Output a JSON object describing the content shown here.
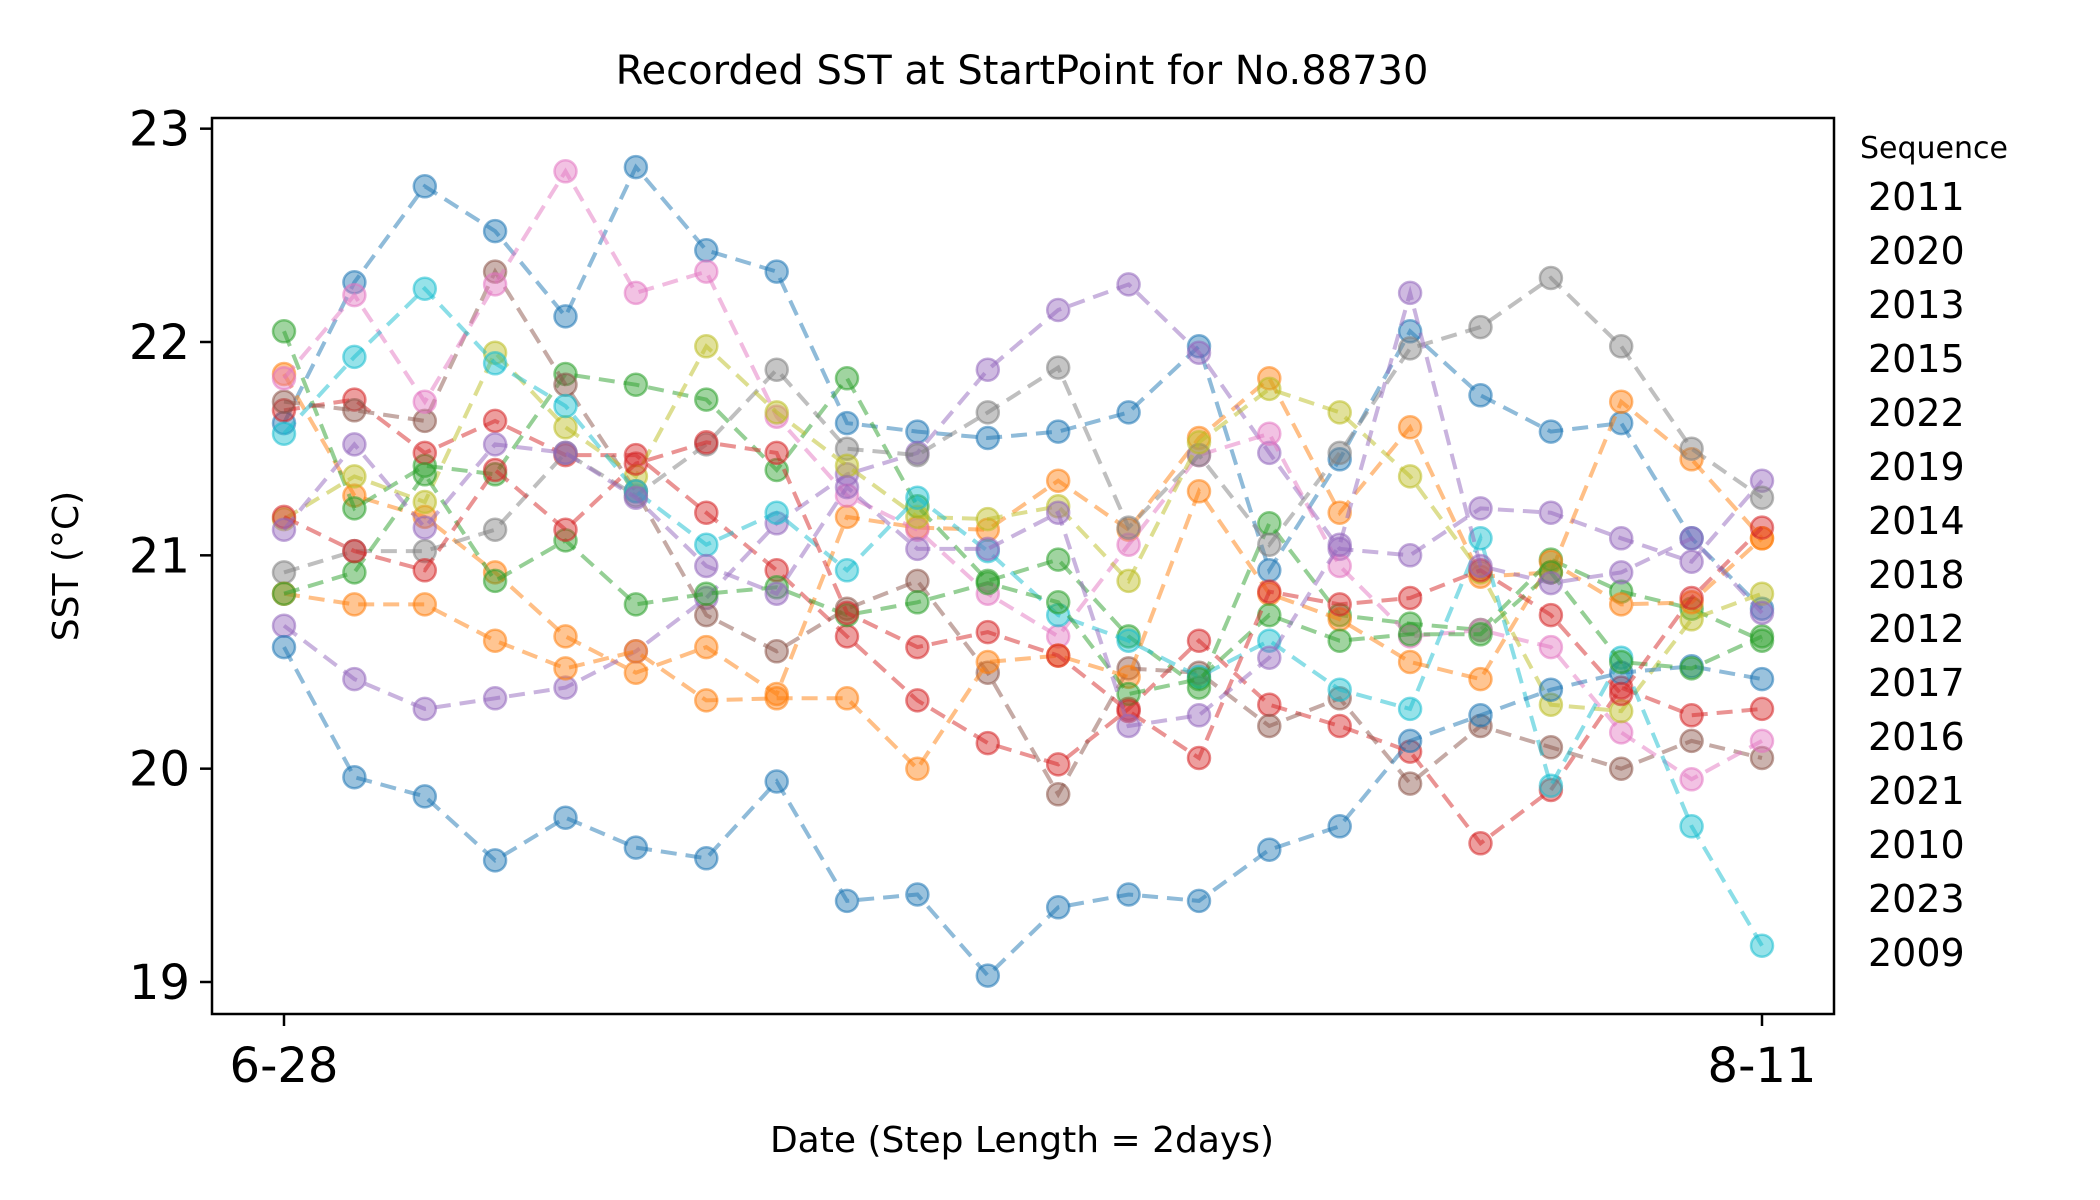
{
  "chart_data": {
    "type": "line",
    "title": "Recorded SST at StartPoint for No.88730",
    "xlabel": "Date (Step Length = 2days)",
    "ylabel": "SST (°C)",
    "x_tick_labels": [
      "6-28",
      "8-11"
    ],
    "ylim": [
      18.85,
      23.05
    ],
    "yticks": [
      19,
      20,
      21,
      22,
      23
    ],
    "grid": false,
    "line_style": "dashed",
    "marker": "circle",
    "legend": {
      "title": "Sequence",
      "placement": "right-outside",
      "show_markers": false
    },
    "series": [
      {
        "name": "2011",
        "color": "#1f77b4",
        "values": [
          21.62,
          22.28,
          22.73,
          22.52,
          22.12,
          22.82,
          22.43,
          22.33,
          21.62,
          21.58,
          21.55,
          21.58,
          21.67,
          21.98,
          20.93,
          21.45,
          22.05,
          21.75,
          21.58,
          21.62,
          21.08,
          20.75
        ]
      },
      {
        "name": "2020",
        "color": "#ff7f0e",
        "values": [
          21.85,
          21.28,
          21.18,
          20.92,
          20.62,
          20.45,
          20.57,
          20.35,
          21.18,
          21.13,
          21.12,
          21.35,
          21.12,
          21.55,
          21.83,
          21.2,
          21.6,
          20.9,
          20.92,
          21.72,
          21.45,
          21.08
        ]
      },
      {
        "name": "2013",
        "color": "#2ca02c",
        "values": [
          22.05,
          21.22,
          21.42,
          21.38,
          21.85,
          21.8,
          21.73,
          21.4,
          21.83,
          21.23,
          20.88,
          20.98,
          20.62,
          20.38,
          21.15,
          20.72,
          20.68,
          20.65,
          20.98,
          20.83,
          20.75,
          20.6
        ]
      },
      {
        "name": "2015",
        "color": "#d62728",
        "values": [
          21.68,
          21.73,
          21.48,
          21.63,
          21.47,
          21.47,
          21.2,
          20.93,
          20.62,
          20.32,
          20.12,
          20.02,
          20.28,
          20.6,
          20.3,
          20.2,
          20.08,
          19.65,
          19.9,
          20.38,
          20.25,
          20.28
        ]
      },
      {
        "name": "2022",
        "color": "#9467bd",
        "values": [
          20.67,
          20.42,
          20.28,
          20.33,
          20.38,
          20.55,
          20.8,
          21.15,
          21.38,
          21.48,
          21.87,
          22.15,
          22.27,
          21.95,
          21.48,
          21.03,
          21.0,
          21.22,
          21.2,
          21.08,
          20.97,
          21.35
        ]
      },
      {
        "name": "2019",
        "color": "#8c564b",
        "values": [
          21.72,
          21.68,
          21.63,
          22.33,
          21.8,
          21.3,
          20.72,
          20.55,
          20.75,
          20.88,
          20.45,
          19.88,
          20.47,
          20.45,
          20.2,
          20.33,
          19.93,
          20.2,
          20.1,
          20.0,
          20.13,
          20.05
        ]
      },
      {
        "name": "2014",
        "color": "#e377c2",
        "values": [
          21.83,
          22.22,
          21.72,
          22.27,
          22.8,
          22.23,
          22.33,
          21.65,
          21.28,
          21.12,
          20.82,
          20.62,
          21.05,
          21.47,
          21.57,
          20.95,
          20.62,
          20.65,
          20.57,
          20.17,
          19.95,
          20.13
        ]
      },
      {
        "name": "2018",
        "color": "#7f7f7f",
        "values": [
          20.92,
          21.02,
          21.02,
          21.12,
          21.48,
          21.28,
          21.52,
          21.87,
          21.5,
          21.47,
          21.67,
          21.88,
          21.13,
          21.47,
          21.05,
          21.48,
          21.97,
          22.07,
          22.3,
          21.98,
          21.5,
          21.27
        ]
      },
      {
        "name": "2012",
        "color": "#bcbd22",
        "values": [
          21.17,
          21.37,
          21.25,
          21.95,
          21.6,
          21.37,
          21.98,
          21.67,
          21.42,
          21.18,
          21.17,
          21.23,
          20.88,
          21.53,
          21.78,
          21.67,
          21.37,
          20.92,
          20.3,
          20.27,
          20.7,
          20.82
        ]
      },
      {
        "name": "2017",
        "color": "#17becf",
        "values": [
          21.57,
          21.93,
          22.25,
          21.9,
          21.7,
          21.3,
          21.05,
          21.2,
          20.93,
          21.27,
          21.02,
          20.72,
          20.6,
          20.43,
          20.6,
          20.37,
          20.28,
          21.08,
          19.92,
          20.52,
          19.73,
          19.17
        ]
      },
      {
        "name": "2016",
        "color": "#1f77b4",
        "values": [
          20.57,
          19.96,
          19.87,
          19.57,
          19.77,
          19.63,
          19.58,
          19.94,
          19.38,
          19.41,
          19.03,
          19.35,
          19.41,
          19.38,
          19.62,
          19.73,
          20.13,
          20.25,
          20.37,
          20.45,
          20.48,
          20.42
        ]
      },
      {
        "name": "2021",
        "color": "#ff7f0e",
        "values": [
          20.82,
          20.77,
          20.77,
          20.6,
          20.47,
          20.55,
          20.32,
          20.33,
          20.33,
          20.0,
          20.5,
          20.53,
          20.43,
          21.3,
          20.82,
          20.7,
          20.5,
          20.42,
          20.97,
          20.77,
          20.78,
          21.08
        ]
      },
      {
        "name": "2010",
        "color": "#2ca02c",
        "values": [
          20.82,
          20.92,
          21.38,
          20.88,
          21.07,
          20.77,
          20.82,
          20.85,
          20.72,
          20.78,
          20.87,
          20.78,
          20.35,
          20.42,
          20.72,
          20.6,
          20.63,
          20.63,
          20.92,
          20.5,
          20.47,
          20.62
        ]
      },
      {
        "name": "2023",
        "color": "#d62728",
        "values": [
          21.18,
          21.02,
          20.93,
          21.4,
          21.12,
          21.43,
          21.53,
          21.48,
          20.73,
          20.57,
          20.64,
          20.53,
          20.27,
          20.05,
          20.83,
          20.77,
          20.8,
          20.93,
          20.72,
          20.35,
          20.8,
          21.13
        ]
      },
      {
        "name": "2009",
        "color": "#9467bd",
        "values": [
          21.12,
          21.52,
          21.13,
          21.52,
          21.48,
          21.27,
          20.95,
          20.82,
          21.32,
          21.03,
          21.03,
          21.2,
          20.2,
          20.25,
          20.52,
          21.05,
          22.23,
          20.95,
          20.87,
          20.92,
          21.08,
          20.73
        ]
      }
    ]
  }
}
